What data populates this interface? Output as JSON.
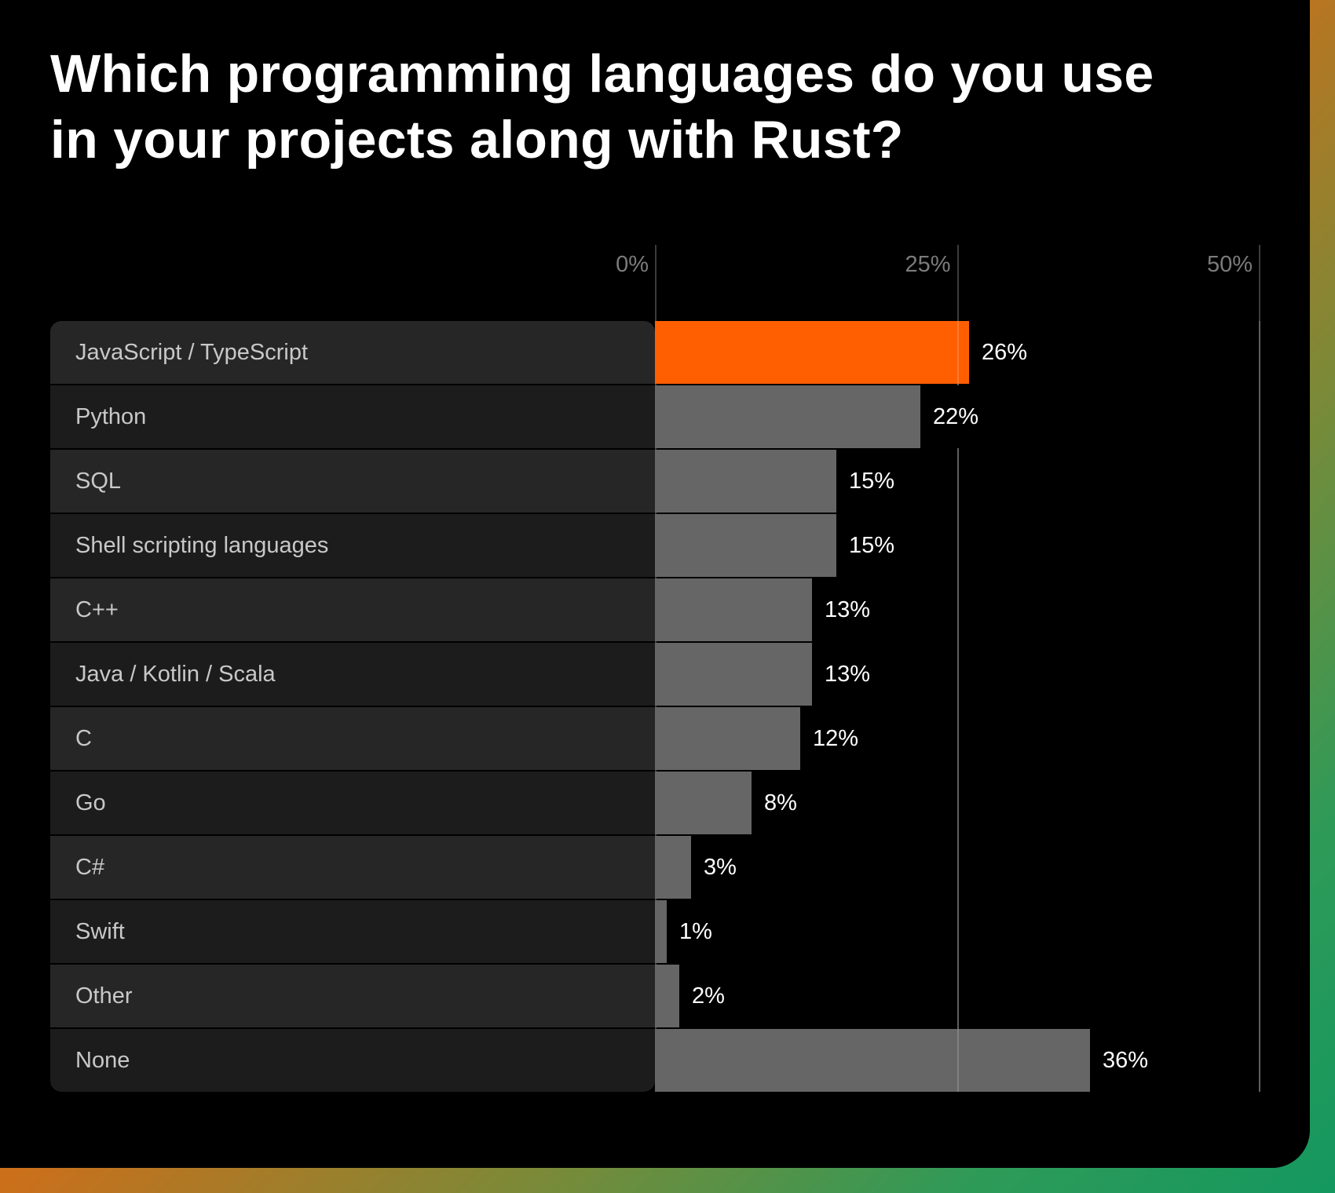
{
  "colors": {
    "highlight": "#ff5f00",
    "bar": "#666666",
    "row_odd": "#262626",
    "row_even": "#1c1c1c",
    "gradient_start": "#ff5f00",
    "gradient_end": "#14985f"
  },
  "chart_data": {
    "type": "bar",
    "orientation": "horizontal",
    "title": "Which programming languages do you use in your projects along with Rust?",
    "title_lines": [
      "Which programming languages do you use",
      "in your projects along with Rust?"
    ],
    "xlabel": "",
    "ylabel": "",
    "xlim": [
      0,
      50
    ],
    "ticks": [
      {
        "value": 0,
        "label": "0%"
      },
      {
        "value": 25,
        "label": "25%"
      },
      {
        "value": 50,
        "label": "50%"
      }
    ],
    "grid": true,
    "categories": [
      "JavaScript / TypeScript",
      "Python",
      "SQL",
      "Shell scripting languages",
      "C++",
      "Java / Kotlin / Scala",
      "C",
      "Go",
      "C#",
      "Swift",
      "Other",
      "None"
    ],
    "values": [
      26,
      22,
      15,
      15,
      13,
      13,
      12,
      8,
      3,
      1,
      2,
      36
    ],
    "value_labels": [
      "26%",
      "22%",
      "15%",
      "15%",
      "13%",
      "13%",
      "12%",
      "8%",
      "3%",
      "1%",
      "2%",
      "36%"
    ],
    "highlighted_index": 0
  }
}
